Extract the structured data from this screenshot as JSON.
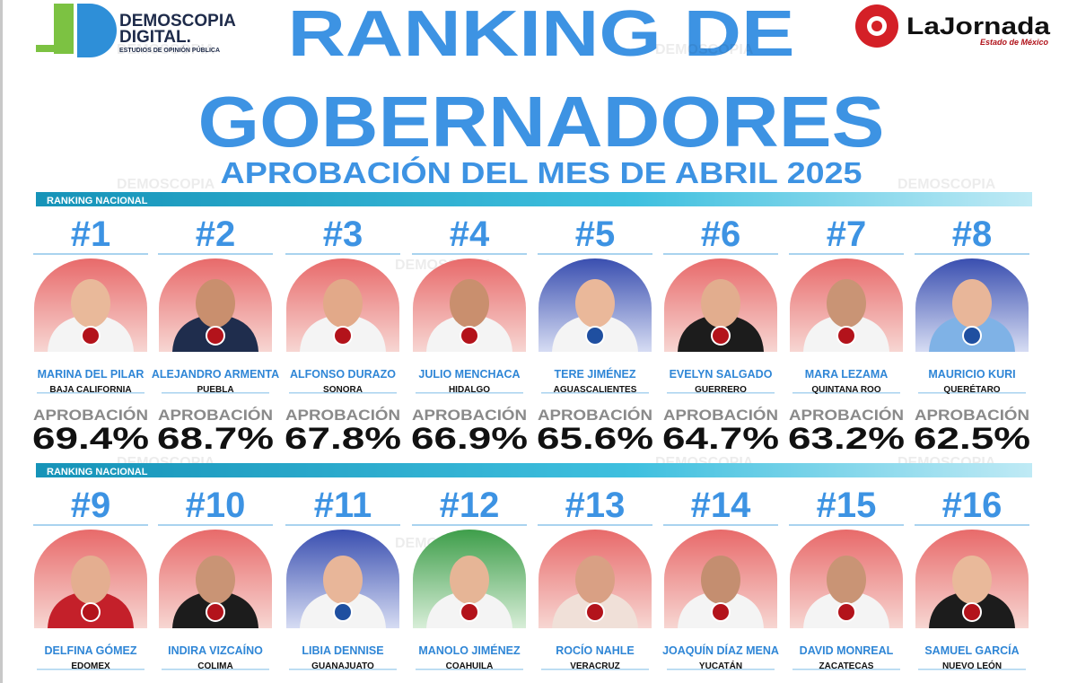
{
  "header": {
    "title_line1": "RANKING DE",
    "title_line2": "GOBERNADORES",
    "subtitle": "APROBACIÓN DEL MES DE ABRIL 2025"
  },
  "logos": {
    "left_name": "DEMOSCOPIA",
    "left_name2": "DIGITAL.",
    "left_tagline": "ESTUDIOS DE OPINIÓN PÚBLICA",
    "right_name": "LaJornada",
    "right_tagline": "Estado de México"
  },
  "watermark": "DEMOSCOPIA",
  "sections": [
    {
      "label": "RANKING NACIONAL",
      "approval_label": "APROBACIÓN",
      "items": [
        {
          "rank": "#1",
          "name": "MARINA DEL PILAR",
          "state": "BAJA CALIFORNIA",
          "approval": "69.4%"
        },
        {
          "rank": "#2",
          "name": "ALEJANDRO ARMENTA",
          "state": "PUEBLA",
          "approval": "68.7%"
        },
        {
          "rank": "#3",
          "name": "ALFONSO DURAZO",
          "state": "SONORA",
          "approval": "67.8%"
        },
        {
          "rank": "#4",
          "name": "JULIO MENCHACA",
          "state": "HIDALGO",
          "approval": "66.9%"
        },
        {
          "rank": "#5",
          "name": "TERE JIMÉNEZ",
          "state": "AGUASCALIENTES",
          "approval": "65.6%"
        },
        {
          "rank": "#6",
          "name": "EVELYN SALGADO",
          "state": "GUERRERO",
          "approval": "64.7%"
        },
        {
          "rank": "#7",
          "name": "MARA LEZAMA",
          "state": "QUINTANA ROO",
          "approval": "63.2%"
        },
        {
          "rank": "#8",
          "name": "MAURICIO KURI",
          "state": "QUERÉTARO",
          "approval": "62.5%"
        }
      ]
    },
    {
      "label": "RANKING NACIONAL",
      "items": [
        {
          "rank": "#9",
          "name": "DELFINA GÓMEZ",
          "state": "EDOMEX"
        },
        {
          "rank": "#10",
          "name": "INDIRA VIZCAÍNO",
          "state": "COLIMA"
        },
        {
          "rank": "#11",
          "name": "LIBIA DENNISE",
          "state": "GUANAJUATO"
        },
        {
          "rank": "#12",
          "name": "MANOLO JIMÉNEZ",
          "state": "COAHUILA"
        },
        {
          "rank": "#13",
          "name": "ROCÍO NAHLE",
          "state": "VERACRUZ"
        },
        {
          "rank": "#14",
          "name": "JOAQUÍN DÍAZ MENA",
          "state": "YUCATÁN"
        },
        {
          "rank": "#15",
          "name": "DAVID MONREAL",
          "state": "ZACATECAS"
        },
        {
          "rank": "#16",
          "name": "SAMUEL GARCÍA",
          "state": "NUEVO LEÓN"
        }
      ]
    }
  ]
}
